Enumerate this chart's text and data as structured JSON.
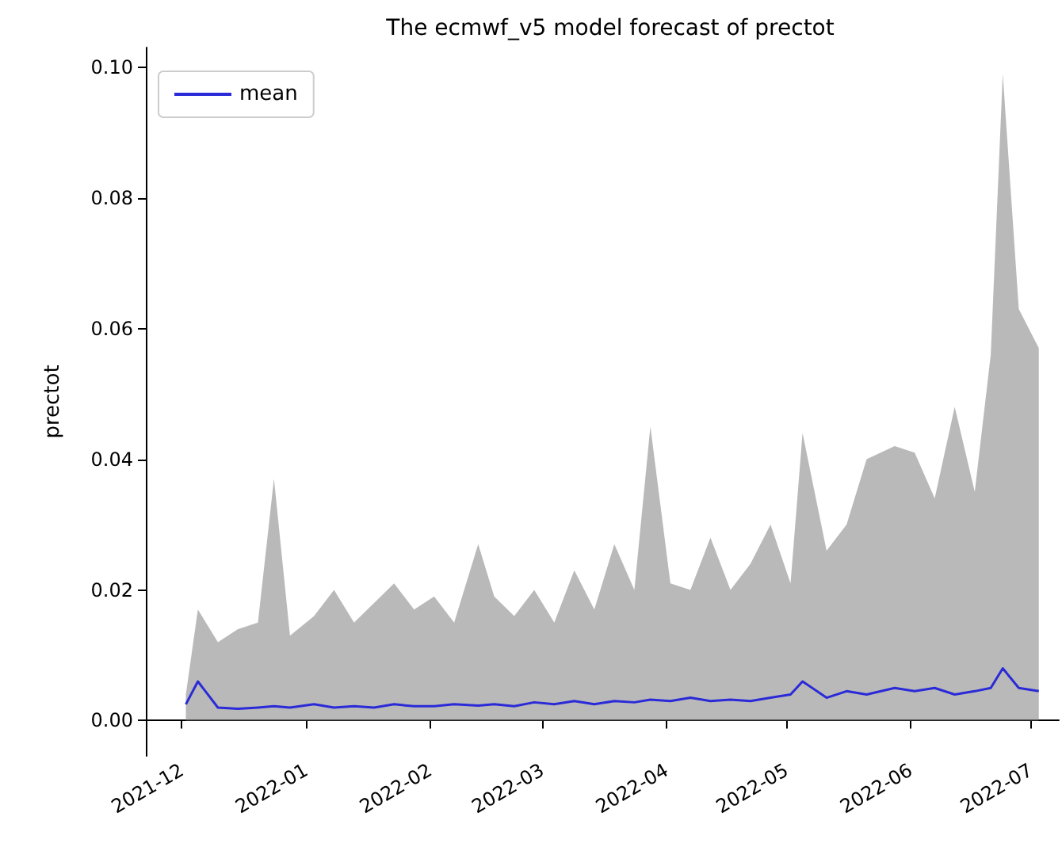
{
  "chart_data": {
    "type": "line",
    "title": "The ecmwf_v5 model forecast of prectot",
    "ylabel": "prectot",
    "x": [
      "2021-12-02",
      "2021-12-05",
      "2021-12-10",
      "2021-12-15",
      "2021-12-20",
      "2021-12-24",
      "2021-12-28",
      "2022-01-03",
      "2022-01-08",
      "2022-01-13",
      "2022-01-18",
      "2022-01-23",
      "2022-01-28",
      "2022-02-02",
      "2022-02-07",
      "2022-02-13",
      "2022-02-17",
      "2022-02-22",
      "2022-02-27",
      "2022-03-04",
      "2022-03-09",
      "2022-03-14",
      "2022-03-19",
      "2022-03-24",
      "2022-03-28",
      "2022-04-02",
      "2022-04-07",
      "2022-04-12",
      "2022-04-17",
      "2022-04-22",
      "2022-04-27",
      "2022-05-02",
      "2022-05-05",
      "2022-05-11",
      "2022-05-16",
      "2022-05-21",
      "2022-05-28",
      "2022-06-02",
      "2022-06-07",
      "2022-06-12",
      "2022-06-17",
      "2022-06-21",
      "2022-06-24",
      "2022-06-28",
      "2022-07-03"
    ],
    "series": [
      {
        "name": "mean",
        "color": "#2a2ad8",
        "values": [
          0.0025,
          0.006,
          0.002,
          0.0018,
          0.002,
          0.0022,
          0.002,
          0.0025,
          0.002,
          0.0022,
          0.002,
          0.0025,
          0.0022,
          0.0022,
          0.0025,
          0.0023,
          0.0025,
          0.0022,
          0.0028,
          0.0025,
          0.003,
          0.0025,
          0.003,
          0.0028,
          0.0032,
          0.003,
          0.0035,
          0.003,
          0.0032,
          0.003,
          0.0035,
          0.004,
          0.006,
          0.0035,
          0.0045,
          0.004,
          0.005,
          0.0045,
          0.005,
          0.004,
          0.0045,
          0.005,
          0.008,
          0.005,
          0.0045
        ],
        "lower": [
          0,
          0,
          0,
          0,
          0,
          0,
          0,
          0,
          0,
          0,
          0,
          0,
          0,
          0,
          0,
          0,
          0,
          0,
          0,
          0,
          0,
          0,
          0,
          0,
          0,
          0,
          0,
          0,
          0,
          0,
          0,
          0,
          0,
          0,
          0,
          0,
          0,
          0,
          0,
          0,
          0,
          0,
          0,
          0,
          0
        ],
        "upper": [
          0.004,
          0.017,
          0.012,
          0.014,
          0.015,
          0.037,
          0.013,
          0.016,
          0.02,
          0.015,
          0.018,
          0.021,
          0.017,
          0.019,
          0.015,
          0.027,
          0.019,
          0.016,
          0.02,
          0.015,
          0.023,
          0.017,
          0.027,
          0.02,
          0.045,
          0.021,
          0.02,
          0.028,
          0.02,
          0.024,
          0.03,
          0.021,
          0.044,
          0.026,
          0.03,
          0.04,
          0.042,
          0.041,
          0.034,
          0.048,
          0.035,
          0.056,
          0.099,
          0.063,
          0.057
        ]
      }
    ],
    "xlim": [
      "2021-11-22",
      "2022-07-08"
    ],
    "xticks": [
      {
        "value": "2021-12-01",
        "label": "2021-12"
      },
      {
        "value": "2022-01-01",
        "label": "2022-01"
      },
      {
        "value": "2022-02-01",
        "label": "2022-02"
      },
      {
        "value": "2022-03-01",
        "label": "2022-03"
      },
      {
        "value": "2022-04-01",
        "label": "2022-04"
      },
      {
        "value": "2022-05-01",
        "label": "2022-05"
      },
      {
        "value": "2022-06-01",
        "label": "2022-06"
      },
      {
        "value": "2022-07-01",
        "label": "2022-07"
      }
    ],
    "ylim": [
      -0.0054,
      0.103
    ],
    "yticks": [
      {
        "value": 0,
        "label": "0.00"
      },
      {
        "value": 0.02,
        "label": "0.02"
      },
      {
        "value": 0.04,
        "label": "0.04"
      },
      {
        "value": 0.06,
        "label": "0.06"
      },
      {
        "value": 0.08,
        "label": "0.08"
      },
      {
        "value": 0.1,
        "label": "0.10"
      }
    ],
    "legend": "top left",
    "grid": false,
    "marker": "none",
    "line_style": "solid"
  }
}
